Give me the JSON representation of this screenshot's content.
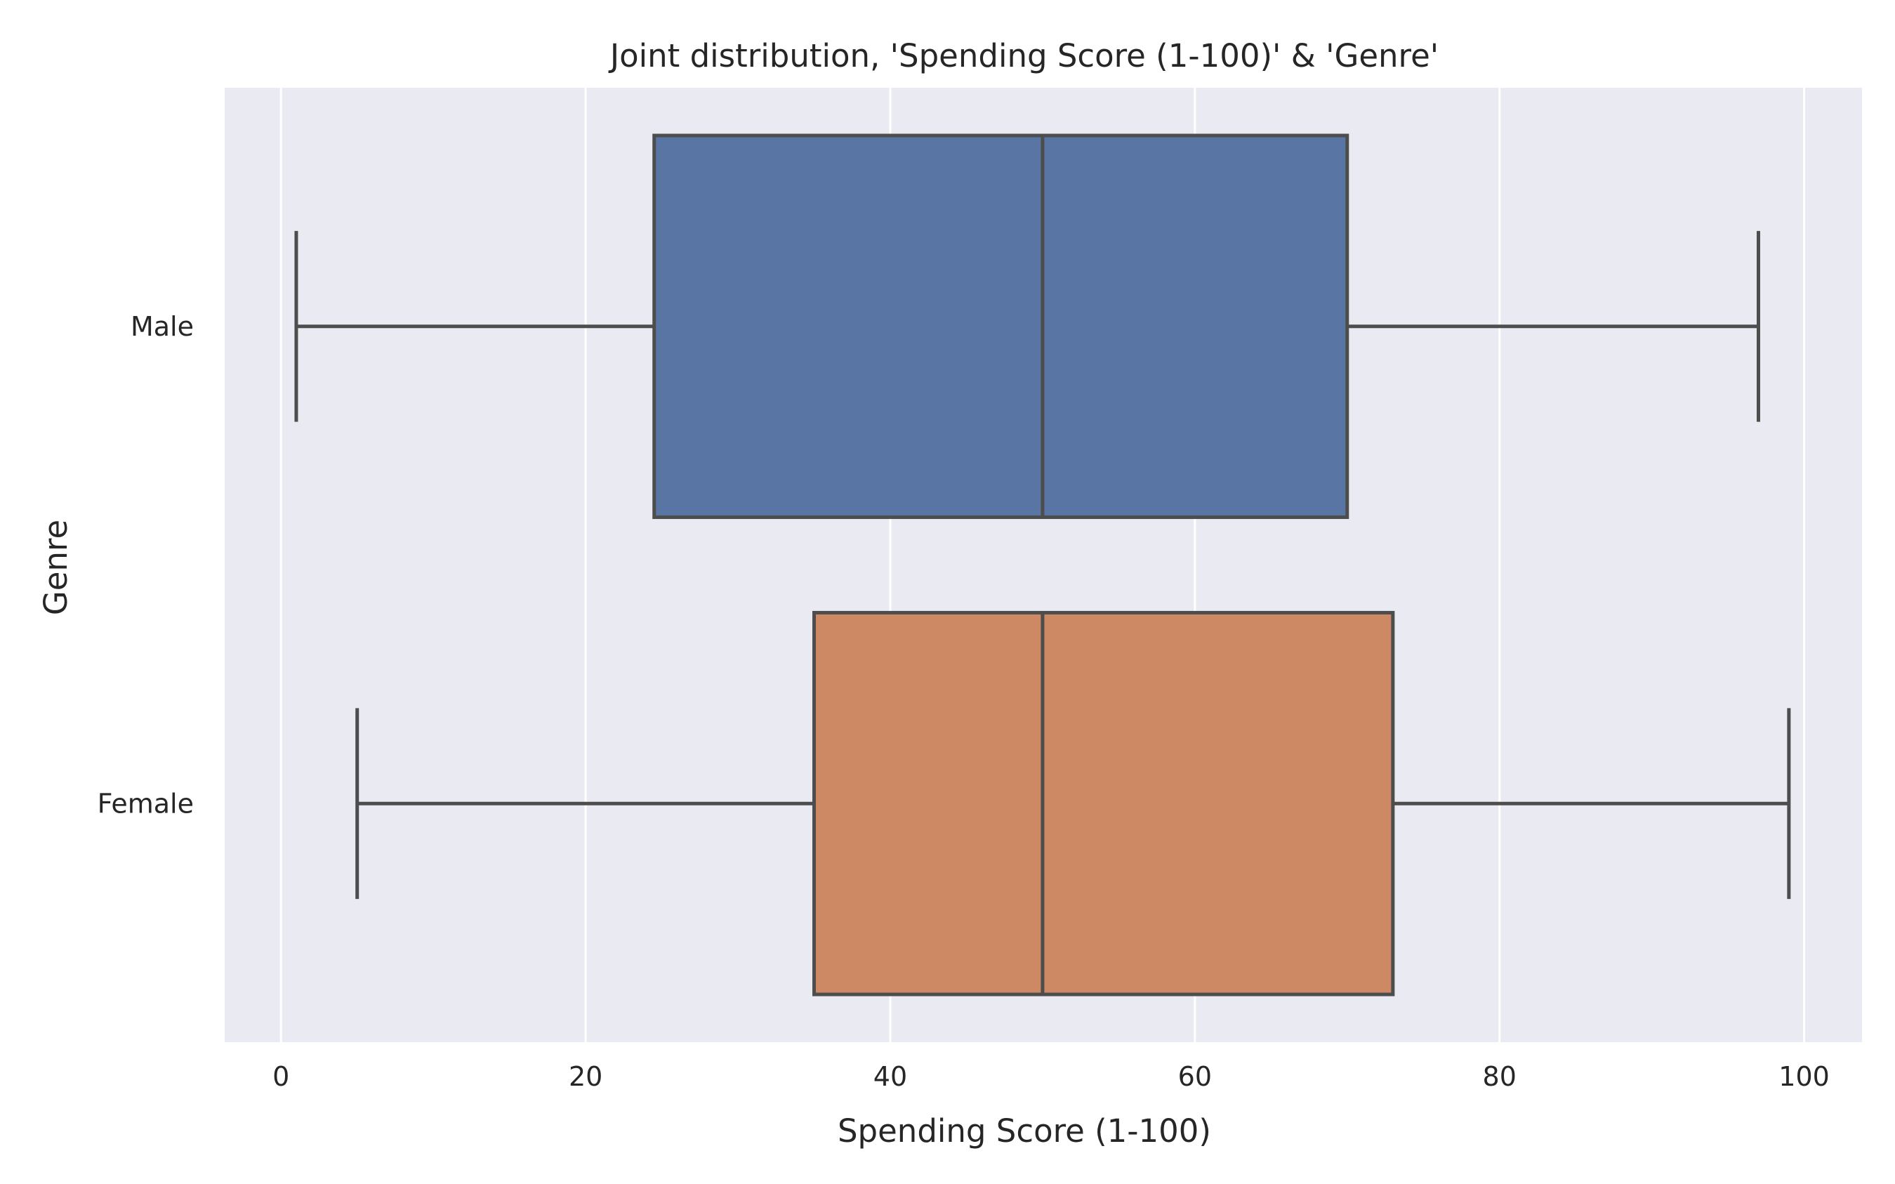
{
  "chart_data": {
    "type": "box",
    "orientation": "horizontal",
    "title": "Joint distribution, 'Spending Score (1-100)' & 'Genre'",
    "xlabel": "Spending Score (1-100)",
    "ylabel": "Genre",
    "xlim": [
      -3.7,
      103.8
    ],
    "xticks": [
      0,
      20,
      40,
      60,
      80,
      100
    ],
    "xtick_labels": [
      "0",
      "20",
      "40",
      "60",
      "80",
      "100"
    ],
    "grid": true,
    "background": "#eaeaf2",
    "gridline_color": "#ffffff",
    "line_color": "#4d4d4d",
    "categories": [
      "Male",
      "Female"
    ],
    "series": [
      {
        "category": "Male",
        "whisker_low": 1,
        "q1": 24.5,
        "median": 50,
        "q3": 70,
        "whisker_high": 97,
        "color": "#5975a4"
      },
      {
        "category": "Female",
        "whisker_low": 5,
        "q1": 35,
        "median": 50,
        "q3": 73,
        "whisker_high": 99,
        "color": "#cc8963"
      }
    ]
  }
}
